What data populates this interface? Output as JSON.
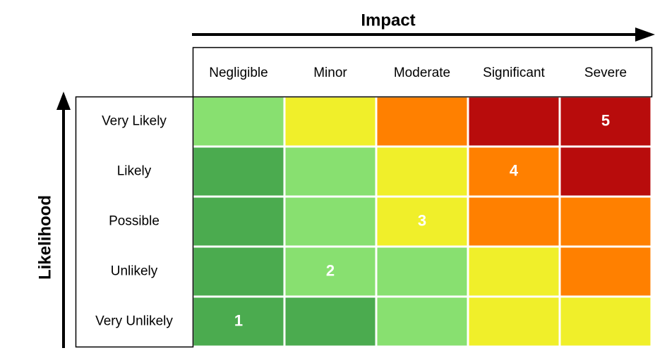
{
  "x_axis_title": "Impact",
  "y_axis_title": "Likelihood",
  "columns": [
    "Negligible",
    "Minor",
    "Moderate",
    "Significant",
    "Severe"
  ],
  "rows": [
    {
      "label": "Very Likely",
      "cells": [
        {
          "color": "#88e070"
        },
        {
          "color": "#f0ef2a"
        },
        {
          "color": "#ff8000"
        },
        {
          "color": "#b80c0c"
        },
        {
          "color": "#b80c0c",
          "label": "5"
        }
      ]
    },
    {
      "label": "Likely",
      "cells": [
        {
          "color": "#4bab4f"
        },
        {
          "color": "#88e070"
        },
        {
          "color": "#f0ef2a"
        },
        {
          "color": "#ff8000",
          "label": "4"
        },
        {
          "color": "#b80c0c"
        }
      ]
    },
    {
      "label": "Possible",
      "cells": [
        {
          "color": "#4bab4f"
        },
        {
          "color": "#88e070"
        },
        {
          "color": "#f0ef2a",
          "label": "3"
        },
        {
          "color": "#ff8000"
        },
        {
          "color": "#ff8000"
        }
      ]
    },
    {
      "label": "Unlikely",
      "cells": [
        {
          "color": "#4bab4f"
        },
        {
          "color": "#88e070",
          "label": "2"
        },
        {
          "color": "#88e070"
        },
        {
          "color": "#f0ef2a"
        },
        {
          "color": "#ff8000"
        }
      ]
    },
    {
      "label": "Very Unlikely",
      "cells": [
        {
          "color": "#4bab4f",
          "label": "1"
        },
        {
          "color": "#4bab4f"
        },
        {
          "color": "#88e070"
        },
        {
          "color": "#f0ef2a"
        },
        {
          "color": "#f0ef2a"
        }
      ]
    }
  ]
}
